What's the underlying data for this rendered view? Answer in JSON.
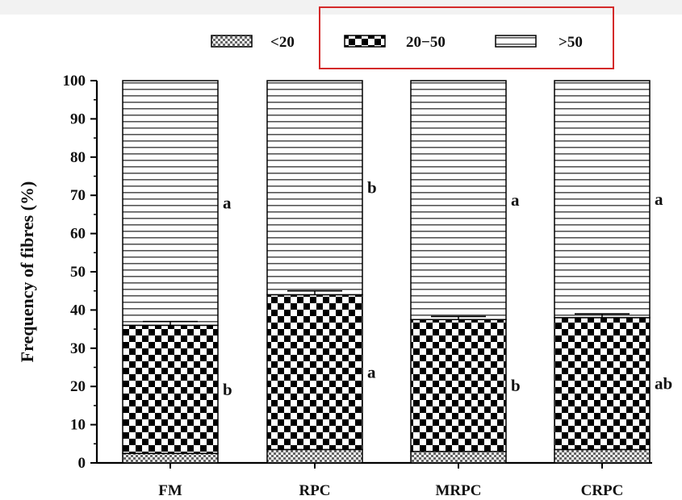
{
  "chart_data": {
    "type": "bar",
    "stacked": true,
    "categories": [
      "FM",
      "RPC",
      "MRPC",
      "CRPC"
    ],
    "series": [
      {
        "name": "<20",
        "values": [
          2.5,
          3.5,
          3,
          3.5
        ],
        "letters": [
          "",
          "",
          "",
          ""
        ]
      },
      {
        "name": "20−50",
        "values": [
          33.5,
          40.5,
          34.5,
          34.5
        ],
        "letters": [
          "b",
          "a",
          "b",
          "ab"
        ]
      },
      {
        "name": ">50",
        "values": [
          64,
          56,
          62.5,
          62
        ],
        "letters": [
          "a",
          "b",
          "a",
          "a"
        ]
      }
    ],
    "error_bars": [
      1,
      1,
      0.8,
      1
    ],
    "ylabel": "Frequency of fibres (%)",
    "xlabel": "",
    "ylim": [
      0,
      100
    ],
    "yticks": [
      0,
      10,
      20,
      30,
      40,
      50,
      60,
      70,
      80,
      90,
      100
    ],
    "grid": false,
    "legend_position": "top",
    "legend_highlight_color": "#d42a2a"
  }
}
